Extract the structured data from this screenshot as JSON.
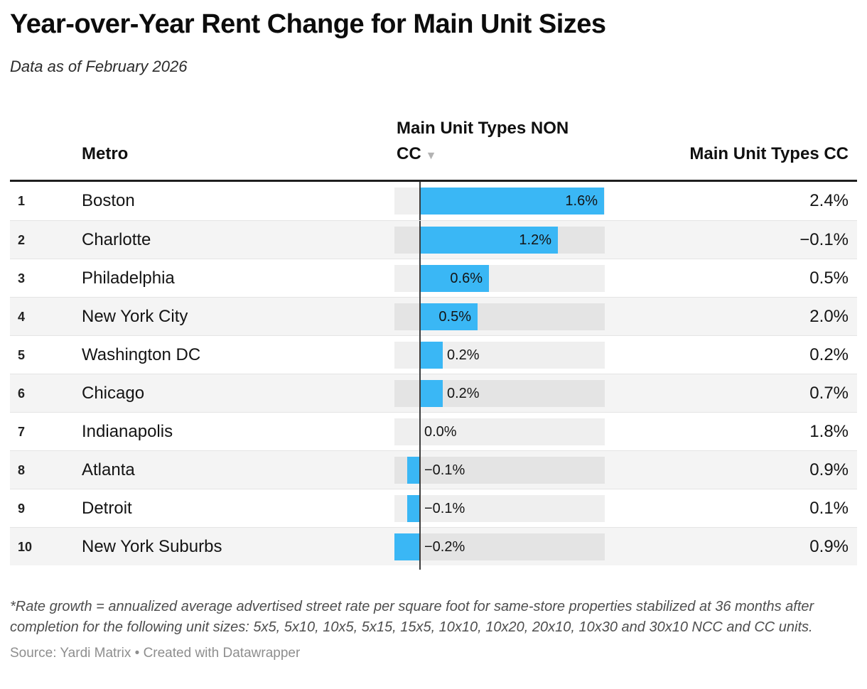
{
  "header": {
    "title": "Year-over-Year Rent Change for Main Unit Sizes",
    "subtitle": "Data as of February 2026"
  },
  "table": {
    "columns": {
      "metro": "Metro",
      "non_cc": "Main Unit Types NON CC",
      "non_cc_line1": "Main Unit Types NON",
      "non_cc_line2": "CC",
      "cc": "Main Unit Types CC"
    },
    "sort_icon": "▼"
  },
  "chart_data": {
    "type": "bar",
    "title": "Year-over-Year Rent Change for Main Unit Sizes",
    "subtitle": "Data as of February 2026",
    "categories": [
      "Boston",
      "Charlotte",
      "Philadelphia",
      "New York City",
      "Washington DC",
      "Chicago",
      "Indianapolis",
      "Atlanta",
      "Detroit",
      "New York Suburbs"
    ],
    "ranks": [
      1,
      2,
      3,
      4,
      5,
      6,
      7,
      8,
      9,
      10
    ],
    "series": [
      {
        "name": "Main Unit Types NON CC",
        "values": [
          1.6,
          1.2,
          0.6,
          0.5,
          0.2,
          0.2,
          0.0,
          -0.1,
          -0.1,
          -0.2
        ],
        "labels": [
          "1.6%",
          "1.2%",
          "0.6%",
          "0.5%",
          "0.2%",
          "0.2%",
          "0.0%",
          "−0.1%",
          "−0.1%",
          "−0.2%"
        ]
      },
      {
        "name": "Main Unit Types CC",
        "values": [
          2.4,
          -0.1,
          0.5,
          2.0,
          0.2,
          0.7,
          1.8,
          0.9,
          0.1,
          0.9
        ],
        "labels": [
          "2.4%",
          "−0.1%",
          "0.5%",
          "2.0%",
          "0.2%",
          "0.7%",
          "1.8%",
          "0.9%",
          "0.1%",
          "0.9%"
        ]
      }
    ],
    "xlim": [
      -0.22,
      1.6
    ],
    "sorted_by": "Main Unit Types NON CC descending",
    "bar_color": "#3ab7f5",
    "track_color": "#e9e9e9",
    "stripe_color": "#f4f4f4",
    "legend": "none",
    "grid": "zero-line only"
  },
  "footer": {
    "note": "*Rate growth = annualized average advertised street rate per square foot for same-store properties stabilized at 36 months after completion for the following unit sizes: 5x5, 5x10, 10x5, 5x15, 15x5, 10x10, 10x20, 20x10, 10x30 and 30x10 NCC and CC units.",
    "source": "Source: Yardi Matrix • Created with Datawrapper"
  }
}
